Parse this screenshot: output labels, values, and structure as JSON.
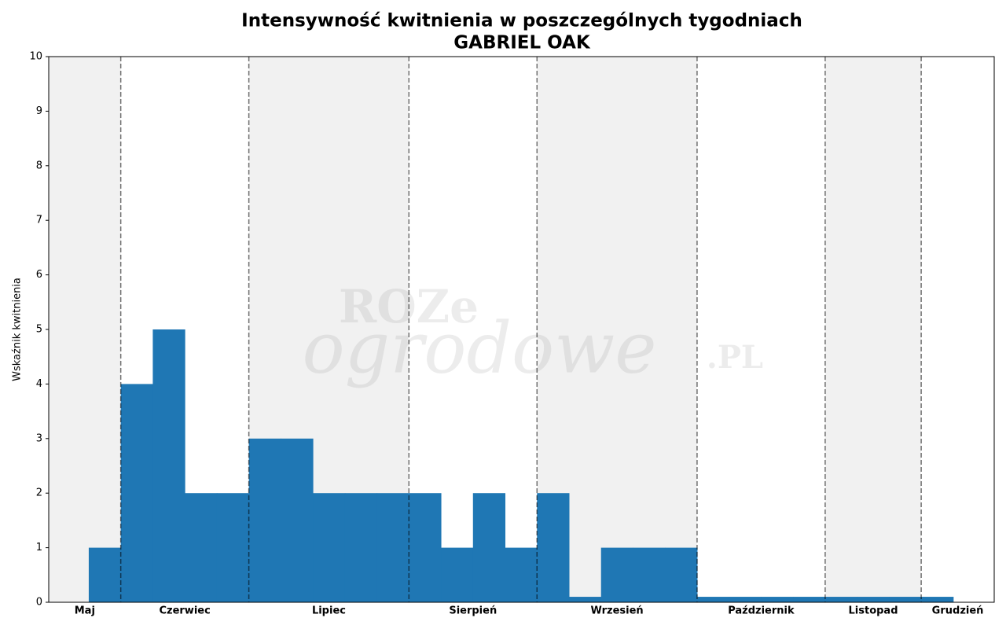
{
  "chart_data": {
    "type": "bar",
    "title": "Intensywność kwitnienia w poszczególnych tygodniach",
    "subtitle": "GABRIEL OAK",
    "y_label": "Wskaźnik kwitnienia",
    "watermark": [
      "ROZe",
      "ogrodowe",
      ".PL"
    ],
    "values": [
      1,
      4,
      5,
      2,
      2,
      3,
      3,
      2,
      2,
      2,
      2,
      1,
      2,
      1,
      2,
      0.1,
      1,
      1,
      1,
      0.1,
      0.1,
      0.1,
      0.1,
      0.1,
      0.1,
      0.1,
      0.1
    ],
    "color": "#1f77b4",
    "xlim": [
      -1.75,
      27.78
    ],
    "ylim": [
      0,
      10
    ],
    "yticks": [
      0,
      1,
      2,
      3,
      4,
      5,
      6,
      7,
      8,
      9,
      10
    ],
    "months": [
      "Maj",
      "Czerwiec",
      "Lipiec",
      "Sierpień",
      "Wrzesień",
      "Październik",
      "Listopad",
      "Grudzień"
    ],
    "month_boundaries": [
      0.5,
      4.5,
      9.5,
      13.5,
      18.5,
      22.5,
      25.5
    ],
    "band_color": "#f1f1f1"
  }
}
